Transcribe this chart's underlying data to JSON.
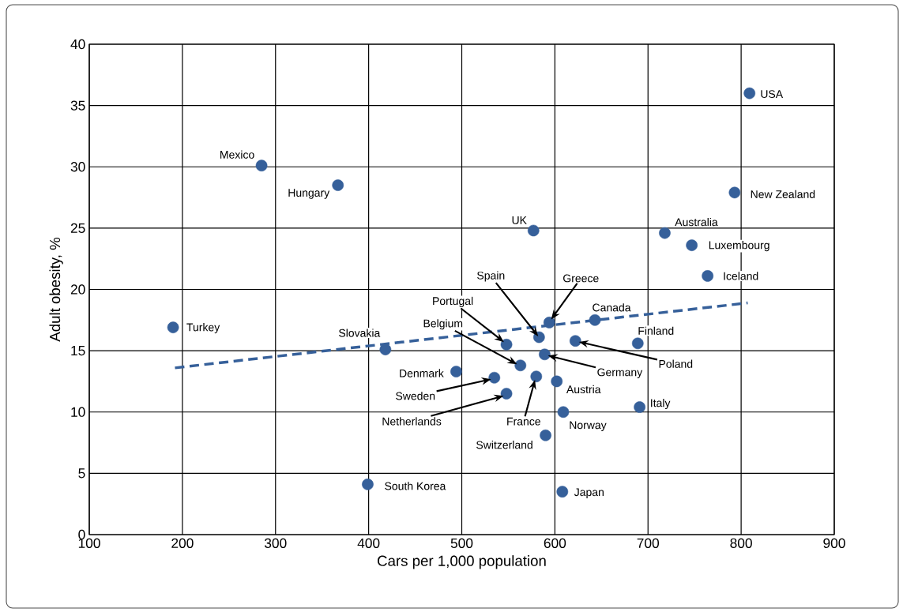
{
  "chart_data": {
    "type": "scatter",
    "xlabel": "Cars per 1,000 population",
    "ylabel": "Adult obesity, %",
    "xlim": [
      100,
      900
    ],
    "ylim": [
      0,
      40
    ],
    "xticks": [
      100,
      200,
      300,
      400,
      500,
      600,
      700,
      800,
      900
    ],
    "yticks": [
      0,
      5,
      10,
      15,
      20,
      25,
      30,
      35,
      40
    ],
    "grid": true,
    "marker": "circle",
    "series": [
      {
        "type": "scatter",
        "color": "#36609a",
        "x": [
          190,
          285,
          367,
          418,
          399,
          494,
          535,
          548,
          548,
          563,
          577,
          580,
          583,
          589,
          590,
          594,
          602,
          609,
          608,
          622,
          643,
          689,
          691,
          718,
          747,
          764,
          793,
          809
        ],
        "values": [
          16.9,
          30.1,
          28.5,
          15.1,
          4.1,
          13.3,
          12.8,
          11.5,
          15.5,
          13.8,
          24.8,
          12.9,
          16.1,
          14.7,
          8.1,
          17.3,
          12.5,
          10.0,
          3.5,
          15.8,
          17.5,
          15.6,
          10.4,
          24.6,
          23.6,
          21.1,
          27.9,
          36.0
        ]
      },
      {
        "type": "line",
        "color": "#36609a",
        "line_style": "dashed",
        "marker": "none",
        "x": [
          192,
          807
        ],
        "values": [
          13.6,
          18.9
        ]
      }
    ],
    "annotations": [
      {
        "text": "Turkey",
        "x": 190,
        "y": 16.9
      },
      {
        "text": "Mexico",
        "x": 285,
        "y": 30.1
      },
      {
        "text": "Hungary",
        "x": 367,
        "y": 28.5
      },
      {
        "text": "Slovakia",
        "x": 418,
        "y": 15.1
      },
      {
        "text": "South Korea",
        "x": 399,
        "y": 4.1
      },
      {
        "text": "Denmark",
        "x": 494,
        "y": 13.3
      },
      "Sweden",
      "Netherlands",
      "Portugal",
      "Belgium",
      {
        "text": "UK",
        "x": 577,
        "y": 24.8
      },
      "France",
      {
        "text": "Spain",
        "x": 583,
        "y": 16.1
      },
      "Germany",
      {
        "text": "Switzerland",
        "x": 590,
        "y": 8.1
      },
      "Greece",
      {
        "text": "Austria",
        "x": 602,
        "y": 12.5
      },
      {
        "text": "Norway",
        "x": 609,
        "y": 10.0
      },
      {
        "text": "Japan",
        "x": 608,
        "y": 3.5
      },
      "Poland",
      {
        "text": "Canada",
        "x": 643,
        "y": 17.5
      },
      {
        "text": "Finland",
        "x": 689,
        "y": 15.6
      },
      {
        "text": "Italy",
        "x": 691,
        "y": 10.4
      },
      {
        "text": "Australia",
        "x": 718,
        "y": 24.6
      },
      {
        "text": "Luxembourg",
        "x": 747,
        "y": 23.6
      },
      {
        "text": "Iceland",
        "x": 764,
        "y": 21.1
      },
      {
        "text": "New Zealand",
        "x": 793,
        "y": 27.9
      },
      {
        "text": "USA",
        "x": 809,
        "y": 36.0
      }
    ]
  }
}
